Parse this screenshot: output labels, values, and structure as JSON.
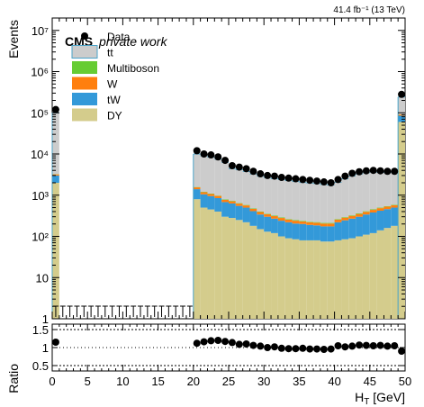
{
  "lumi_label": "41.4 fb⁻¹ (13 TeV)",
  "cms_label": "CMS",
  "cms_sublabel": "private work",
  "colors": {
    "ttbar": "#cccccc",
    "ttbar_edge": "#4aa3c8",
    "multiboson": "#66cc33",
    "w": "#ff7f0e",
    "tw": "#3399d9",
    "dy": "#d4cc8c",
    "data": "#000000"
  },
  "chart_data": [
    {
      "type": "bar",
      "stacked": true,
      "ylabel": "Events",
      "yscale": "log",
      "ylim": [
        1,
        20000000
      ],
      "xlim": [
        0,
        50
      ],
      "bin_width": 1,
      "y_ticks": [
        {
          "value": 10000000,
          "label": "10⁷"
        },
        {
          "value": 1000000,
          "label": "10⁶"
        },
        {
          "value": 100000,
          "label": "10⁵"
        },
        {
          "value": 10000,
          "label": "10⁴"
        },
        {
          "value": 1000,
          "label": "10³"
        },
        {
          "value": 100,
          "label": "10²"
        },
        {
          "value": 10,
          "label": "10"
        },
        {
          "value": 1,
          "label": "1"
        }
      ],
      "legend_position": "top-left",
      "legend": [
        {
          "key": "data",
          "label": "Data",
          "style": "marker"
        },
        {
          "key": "ttbar",
          "label": "tt",
          "style": "box"
        },
        {
          "key": "multiboson",
          "label": "Multiboson",
          "style": "box"
        },
        {
          "key": "w",
          "label": "W",
          "style": "box"
        },
        {
          "key": "tw",
          "label": "tW",
          "style": "box"
        },
        {
          "key": "dy",
          "label": "DY",
          "style": "box"
        }
      ],
      "x_bins": [
        0,
        20,
        21,
        22,
        23,
        24,
        25,
        26,
        27,
        28,
        29,
        30,
        31,
        32,
        33,
        34,
        35,
        36,
        37,
        38,
        39,
        40,
        41,
        42,
        43,
        44,
        45,
        46,
        47,
        48,
        49
      ],
      "series": [
        {
          "key": "dy",
          "values": [
            2000,
            800,
            500,
            450,
            400,
            300,
            280,
            250,
            220,
            180,
            150,
            130,
            120,
            100,
            90,
            85,
            80,
            80,
            80,
            75,
            75,
            80,
            85,
            90,
            100,
            110,
            120,
            140,
            160,
            180,
            60000
          ]
        },
        {
          "key": "tw",
          "values": [
            1000,
            600,
            550,
            500,
            450,
            380,
            350,
            300,
            280,
            230,
            190,
            170,
            150,
            140,
            130,
            120,
            120,
            110,
            105,
            100,
            100,
            140,
            160,
            180,
            200,
            230,
            260,
            280,
            300,
            320,
            25000
          ]
        },
        {
          "key": "w",
          "values": [
            200,
            150,
            130,
            120,
            110,
            90,
            80,
            75,
            65,
            55,
            50,
            45,
            40,
            40,
            35,
            35,
            30,
            30,
            30,
            30,
            30,
            35,
            40,
            45,
            50,
            55,
            60,
            65,
            70,
            70,
            6000
          ]
        },
        {
          "key": "multiboson",
          "values": [
            40,
            30,
            25,
            25,
            20,
            20,
            18,
            16,
            14,
            12,
            10,
            10,
            9,
            9,
            8,
            8,
            8,
            7,
            7,
            7,
            7,
            8,
            9,
            10,
            11,
            12,
            13,
            14,
            15,
            16,
            500
          ]
        },
        {
          "key": "ttbar",
          "values": [
            97000,
            8400,
            7800,
            7300,
            6500,
            5500,
            3700,
            3500,
            3200,
            2800,
            2500,
            2300,
            2200,
            2100,
            2000,
            1900,
            1800,
            1750,
            1700,
            1600,
            1550,
            1800,
            2200,
            2600,
            2900,
            3100,
            3200,
            3100,
            3000,
            3000,
            150000
          ]
        }
      ],
      "data_points": {
        "x": [
          0.5,
          20.5,
          21.5,
          22.5,
          23.5,
          24.5,
          25.5,
          26.5,
          27.5,
          28.5,
          29.5,
          30.5,
          31.5,
          32.5,
          33.5,
          34.5,
          35.5,
          36.5,
          37.5,
          38.5,
          39.5,
          40.5,
          41.5,
          42.5,
          43.5,
          44.5,
          45.5,
          46.5,
          47.5,
          48.5,
          49.5
        ],
        "y": [
          120000,
          12000,
          10000,
          9500,
          8500,
          7000,
          5200,
          4800,
          4400,
          3800,
          3300,
          3000,
          2900,
          2700,
          2600,
          2500,
          2400,
          2300,
          2200,
          2100,
          2000,
          2400,
          2900,
          3400,
          3700,
          3900,
          4000,
          3900,
          3800,
          3800,
          280000
        ]
      },
      "empty_markers_x": [
        0.5,
        1.5,
        2.5,
        3.5,
        4.5,
        5.5,
        6.5,
        7.5,
        8.5,
        9.5,
        10.5,
        11.5,
        12.5,
        13.5,
        14.5,
        15.5,
        16.5,
        17.5,
        18.5,
        19.5
      ]
    },
    {
      "type": "scatter",
      "ylabel": "Ratio",
      "xlabel": "H T [GeV]",
      "xlabel_main": "H",
      "xlabel_sub": "T",
      "xlabel_rest": " [GeV]",
      "xlim": [
        0,
        50
      ],
      "ylim": [
        0.35,
        1.65
      ],
      "x_ticks": [
        0,
        5,
        10,
        15,
        20,
        25,
        30,
        35,
        40,
        45,
        50
      ],
      "y_ticks": [
        {
          "value": 1.5,
          "label": "1.5"
        },
        {
          "value": 1,
          "label": "1"
        },
        {
          "value": 0.5,
          "label": "0.5"
        }
      ],
      "reference_lines": [
        0.5,
        1.0,
        1.5
      ],
      "points": {
        "x": [
          0.5,
          20.5,
          21.5,
          22.5,
          23.5,
          24.5,
          25.5,
          26.5,
          27.5,
          28.5,
          29.5,
          30.5,
          31.5,
          32.5,
          33.5,
          34.5,
          35.5,
          36.5,
          37.5,
          38.5,
          39.5,
          40.5,
          41.5,
          42.5,
          43.5,
          44.5,
          45.5,
          46.5,
          47.5,
          48.5,
          49.5
        ],
        "y": [
          1.15,
          1.12,
          1.16,
          1.19,
          1.2,
          1.17,
          1.14,
          1.09,
          1.1,
          1.06,
          1.04,
          1.0,
          1.02,
          0.98,
          0.97,
          0.97,
          0.98,
          0.96,
          0.96,
          0.95,
          0.96,
          1.05,
          1.02,
          1.04,
          1.07,
          1.06,
          1.05,
          1.06,
          1.04,
          1.05,
          0.9
        ]
      }
    }
  ]
}
